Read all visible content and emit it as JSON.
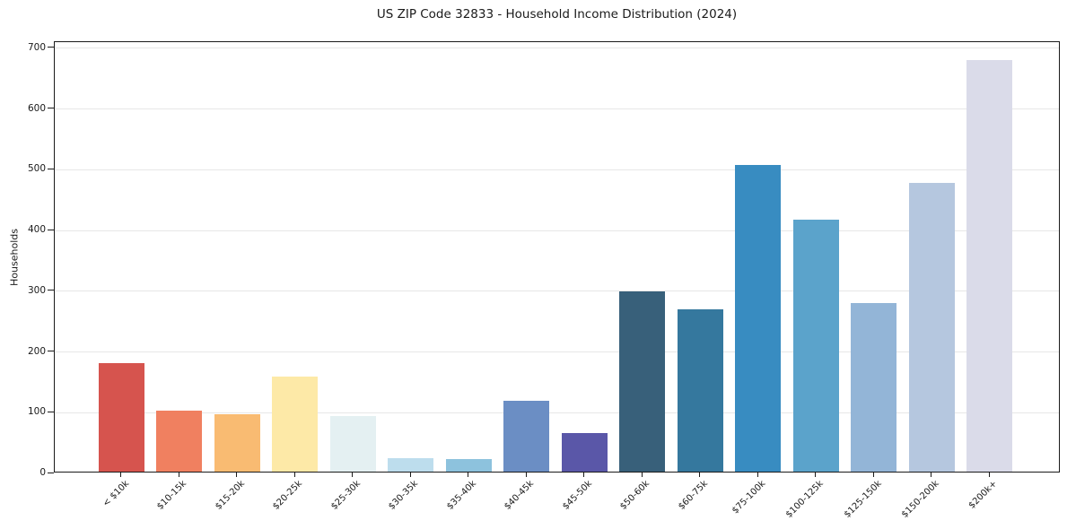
{
  "chart_data": {
    "type": "bar",
    "title": "US ZIP Code 32833 - Household Income Distribution (2024)",
    "xlabel": "",
    "ylabel": "Households",
    "categories": [
      "< $10k",
      "$10-15k",
      "$15-20k",
      "$20-25k",
      "$25-30k",
      "$30-35k",
      "$35-40k",
      "$40-45k",
      "$45-50k",
      "$50-60k",
      "$60-75k",
      "$75-100k",
      "$100-125k",
      "$125-150k",
      "$150-200k",
      "$200k+"
    ],
    "values": [
      178,
      101,
      95,
      156,
      92,
      22,
      20,
      116,
      64,
      297,
      267,
      505,
      415,
      277,
      475,
      678
    ],
    "bar_colors": [
      "#d6544e",
      "#f08060",
      "#f9bb72",
      "#fde9a7",
      "#e4f0f2",
      "#bddded",
      "#8dc2dd",
      "#6b8ec4",
      "#5a57a8",
      "#38607a",
      "#35789e",
      "#388cc1",
      "#5ba3cb",
      "#93b5d7",
      "#b5c7df",
      "#dadbe9"
    ],
    "ylim": [
      0,
      710
    ],
    "yticks": [
      0,
      100,
      200,
      300,
      400,
      500,
      600,
      700
    ],
    "grid": "horizontal",
    "legend": "none",
    "gridline_color": "#e7e7e7",
    "axis_color": "#1a1a1a",
    "background_color": "#ffffff"
  }
}
